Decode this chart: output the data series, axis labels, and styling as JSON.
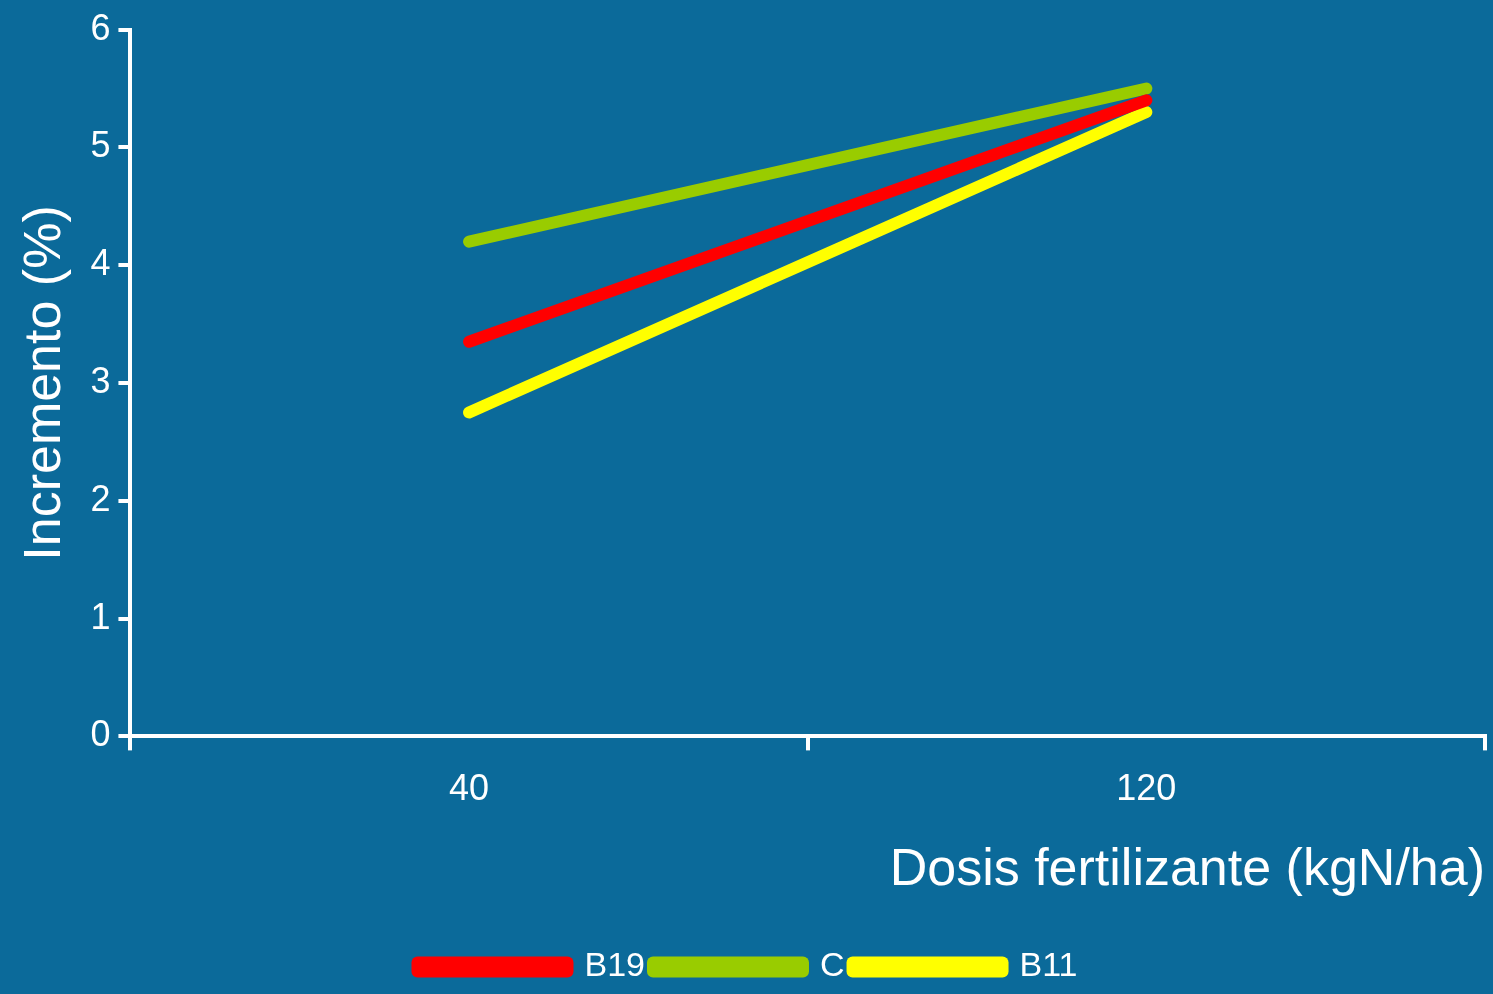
{
  "chart_data": {
    "type": "line",
    "xlabel": "Dosis fertilizante (kgN/ha)",
    "ylabel": "Incremento (%)",
    "categories": [
      "40",
      "120"
    ],
    "series": [
      {
        "name": "B19",
        "color": "#ff0000",
        "values": [
          3.35,
          5.4
        ]
      },
      {
        "name": "C",
        "color": "#99cc00",
        "values": [
          4.2,
          5.5
        ]
      },
      {
        "name": "B11",
        "color": "#ffff00",
        "values": [
          2.75,
          5.3
        ]
      }
    ],
    "ylim": [
      0,
      6
    ],
    "yticks": [
      0,
      1,
      2,
      3,
      4,
      5,
      6
    ],
    "legend": "bottom",
    "marker": "none",
    "line_style": "solid"
  }
}
